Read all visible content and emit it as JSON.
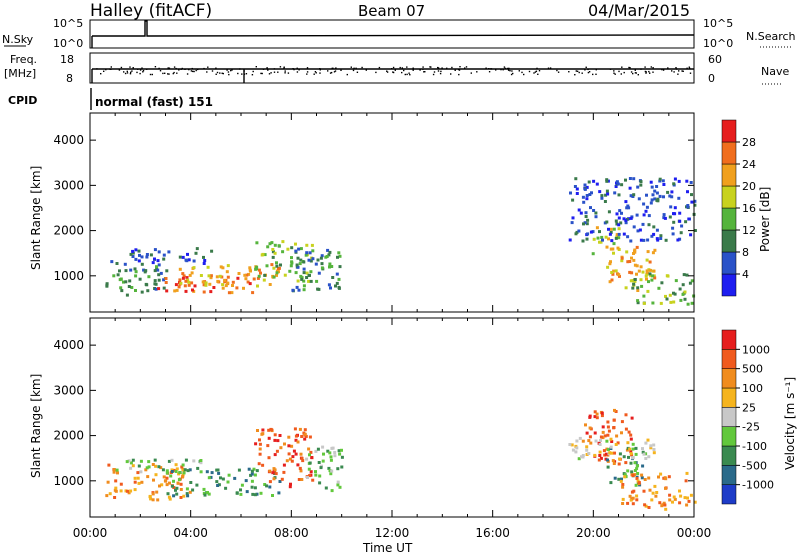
{
  "header": {
    "station": "Halley (fitACF)",
    "beam": "Beam 07",
    "date": "04/Mar/2015"
  },
  "top_panels": {
    "nsky": {
      "left_label": "N.Sky",
      "right_label": "N.Search",
      "ticks_left": [
        "10^5",
        "10^0"
      ],
      "ticks_right": [
        "10^5",
        "10^0"
      ]
    },
    "freq": {
      "left_label_1": "Freq.",
      "left_label_2": "[MHz]",
      "right_label": "Nave",
      "ticks_left": [
        "18",
        "8"
      ],
      "ticks_right": [
        "60",
        "0"
      ]
    },
    "cpid": {
      "label": "CPID",
      "text": "normal (fast) 151"
    }
  },
  "chart_data": [
    {
      "type": "heatmap",
      "name": "power",
      "ylabel": "Slant Range [km]",
      "ylim": [
        200,
        4600
      ],
      "yticks": [
        "1000",
        "2000",
        "3000",
        "4000"
      ],
      "ytick_values": [
        1000,
        2000,
        3000,
        4000
      ],
      "colorbar_label": "Power [dB]",
      "colorbar_ticks": [
        "4",
        "8",
        "12",
        "16",
        "20",
        "24",
        "28"
      ],
      "colorbar_colors": [
        "#1e1ef0",
        "#2a52c8",
        "#3a7a4a",
        "#55b43c",
        "#c8d21e",
        "#f0a01e",
        "#f06e1e",
        "#e61e1e"
      ],
      "blobs": [
        {
          "t0": 0.6,
          "t1": 3.0,
          "r0": 600,
          "r1": 1400,
          "c": 2
        },
        {
          "t0": 2.5,
          "t1": 6.5,
          "r0": 650,
          "r1": 1050,
          "c": 6
        },
        {
          "t0": 3.5,
          "t1": 7.5,
          "r0": 800,
          "r1": 1300,
          "c": 5
        },
        {
          "t0": 6.5,
          "t1": 8.8,
          "r0": 900,
          "r1": 1800,
          "c": 3
        },
        {
          "t0": 8.0,
          "t1": 10.0,
          "r0": 700,
          "r1": 1700,
          "c": 2
        },
        {
          "t0": 1.5,
          "t1": 5.0,
          "r0": 1300,
          "r1": 1650,
          "c": 1
        },
        {
          "t0": 19.8,
          "t1": 21.0,
          "r0": 1500,
          "r1": 2100,
          "c": 4
        },
        {
          "t0": 20.5,
          "t1": 22.5,
          "r0": 700,
          "r1": 1700,
          "c": 5
        },
        {
          "t0": 21.5,
          "t1": 24.0,
          "r0": 400,
          "r1": 1100,
          "c": 3
        },
        {
          "t0": 19.0,
          "t1": 24.0,
          "r0": 1800,
          "r1": 3200,
          "c": 1
        }
      ]
    },
    {
      "type": "heatmap",
      "name": "velocity",
      "xlabel": "Time UT",
      "ylabel": "Slant Range [km]",
      "ylim": [
        200,
        4600
      ],
      "yticks": [
        "1000",
        "2000",
        "3000",
        "4000"
      ],
      "ytick_values": [
        1000,
        2000,
        3000,
        4000
      ],
      "xlim": [
        0,
        24
      ],
      "xticks": [
        "00:00",
        "04:00",
        "08:00",
        "12:00",
        "16:00",
        "20:00",
        "00:00"
      ],
      "colorbar_label": "Velocity [m s⁻¹]",
      "colorbar_ticks": [
        "1000",
        "500",
        "100",
        "25",
        "-25",
        "-100",
        "-500",
        "-1000"
      ],
      "colorbar_colors": [
        "#1e3cc8",
        "#2a6a8a",
        "#3a8a50",
        "#62c83c",
        "#c8c8c8",
        "#f5b41e",
        "#f08c1e",
        "#f05a1e",
        "#e61e1e"
      ],
      "blobs": [
        {
          "t0": 0.6,
          "t1": 4.0,
          "r0": 600,
          "r1": 1400,
          "c": 6
        },
        {
          "t0": 3.0,
          "t1": 7.5,
          "r0": 700,
          "r1": 1300,
          "c": 2
        },
        {
          "t0": 6.5,
          "t1": 8.8,
          "r0": 900,
          "r1": 2200,
          "c": 7
        },
        {
          "t0": 8.5,
          "t1": 10.0,
          "r0": 800,
          "r1": 1800,
          "c": 3
        },
        {
          "t0": 1.0,
          "t1": 4.5,
          "r0": 1200,
          "r1": 1500,
          "c": 3
        },
        {
          "t0": 19.5,
          "t1": 21.5,
          "r0": 1400,
          "r1": 2600,
          "c": 7
        },
        {
          "t0": 20.5,
          "t1": 22.0,
          "r0": 900,
          "r1": 1800,
          "c": 2
        },
        {
          "t0": 21.0,
          "t1": 24.0,
          "r0": 400,
          "r1": 1200,
          "c": 6
        },
        {
          "t0": 19.0,
          "t1": 22.5,
          "r0": 1500,
          "r1": 2000,
          "c": 4
        }
      ]
    }
  ]
}
